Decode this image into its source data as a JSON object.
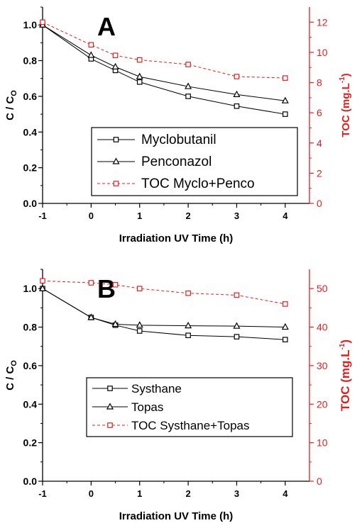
{
  "chart_data": [
    {
      "type": "line",
      "panel_label": "A",
      "xlabel": "Irradiation UV Time (h)",
      "ylabel_main": "C / C",
      "ylabel_sub": "O",
      "y2label_main": "TOC (mg.L",
      "y2label_sup": "-1",
      "y2label_end": ")",
      "xlim": [
        -1,
        4.5
      ],
      "ylim": [
        0.0,
        1.1
      ],
      "y2lim": [
        0,
        13
      ],
      "x_ticks": [
        -1,
        0,
        1,
        2,
        3,
        4
      ],
      "y_ticks": [
        "0.0",
        "0.2",
        "0.4",
        "0.6",
        "0.8",
        "1.0"
      ],
      "y2_ticks": [
        "0",
        "2",
        "4",
        "6",
        "8",
        "10",
        "12"
      ],
      "grid": false,
      "legend_position": "bottom-right",
      "legend_font_size": 19,
      "series": [
        {
          "name": "Myclobutanil",
          "axis": "left",
          "marker": "square",
          "line": "solid",
          "color": "#000000",
          "x": [
            -1,
            0,
            0.5,
            1,
            2,
            3,
            4
          ],
          "y": [
            1.0,
            0.81,
            0.745,
            0.68,
            0.6,
            0.545,
            0.5
          ]
        },
        {
          "name": "Penconazol",
          "axis": "left",
          "marker": "triangle",
          "line": "solid",
          "color": "#000000",
          "x": [
            -1,
            0,
            0.5,
            1,
            2,
            3,
            4
          ],
          "y": [
            1.0,
            0.83,
            0.765,
            0.71,
            0.655,
            0.61,
            0.575
          ]
        },
        {
          "name": "TOC Myclo+Penco",
          "axis": "right",
          "marker": "square",
          "line": "dashed",
          "color": "#e02020",
          "x": [
            -1,
            0,
            0.5,
            1,
            2,
            3,
            4
          ],
          "y": [
            12.0,
            10.5,
            9.8,
            9.5,
            9.2,
            8.4,
            8.3
          ]
        }
      ]
    },
    {
      "type": "line",
      "panel_label": "B",
      "xlabel": "Irradiation UV Time (h)",
      "ylabel_main": "C / C",
      "ylabel_sub": "O",
      "y2label_main": "TOC (mg.L",
      "y2label_sup": "-1",
      "y2label_end": ")",
      "xlim": [
        -1,
        4.5
      ],
      "ylim": [
        0.0,
        1.1
      ],
      "y2lim": [
        0,
        55
      ],
      "x_ticks": [
        -1,
        0,
        1,
        2,
        3,
        4
      ],
      "y_ticks": [
        "0.0",
        "0.2",
        "0.4",
        "0.6",
        "0.8",
        "1.0"
      ],
      "y2_ticks": [
        "0",
        "10",
        "20",
        "30",
        "40",
        "50"
      ],
      "grid": false,
      "legend_position": "bottom-right",
      "legend_font_size": 17,
      "series": [
        {
          "name": "Systhane",
          "axis": "left",
          "marker": "square",
          "line": "solid",
          "color": "#000000",
          "x": [
            -1,
            0,
            0.5,
            1,
            2,
            3,
            4
          ],
          "y": [
            1.0,
            0.85,
            0.81,
            0.78,
            0.757,
            0.75,
            0.735
          ]
        },
        {
          "name": "Topas",
          "axis": "left",
          "marker": "triangle",
          "line": "solid",
          "color": "#000000",
          "x": [
            -1,
            0,
            0.5,
            1,
            2,
            3,
            4
          ],
          "y": [
            1.0,
            0.85,
            0.815,
            0.81,
            0.807,
            0.805,
            0.8
          ]
        },
        {
          "name": "TOC Systhane+Topas",
          "axis": "right",
          "marker": "square",
          "line": "dashed",
          "color": "#e02020",
          "x": [
            -1,
            0,
            0.5,
            1,
            2,
            3,
            4
          ],
          "y": [
            52.0,
            51.5,
            51.0,
            50.0,
            48.8,
            48.3,
            46.0
          ]
        }
      ]
    }
  ]
}
